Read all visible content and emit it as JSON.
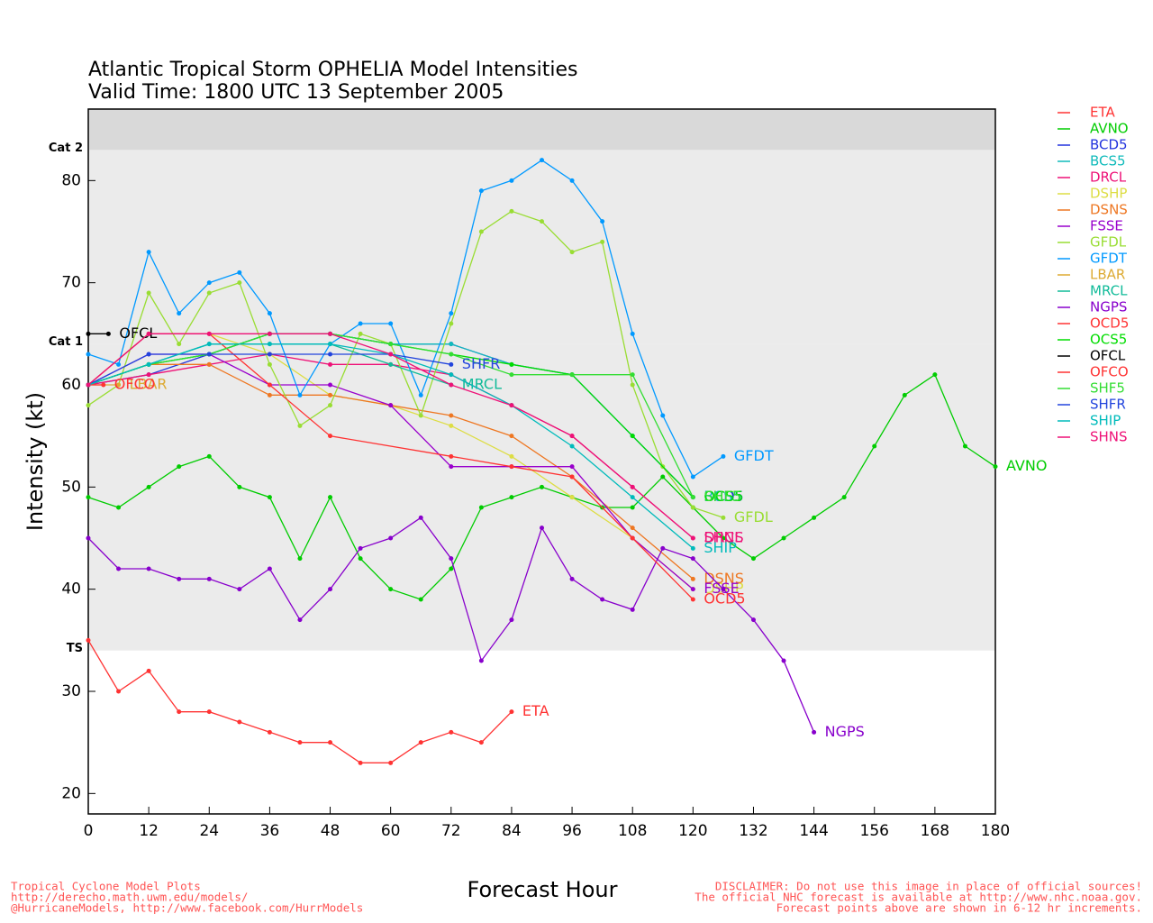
{
  "chart_data": {
    "type": "line",
    "title": "Atlantic Tropical Storm OPHELIA Model Intensities",
    "subtitle": "Valid Time: 1800 UTC 13 September 2005",
    "x_label": "Forecast Hour",
    "y_label": "Intensity (kt)",
    "xlim": [
      0,
      180
    ],
    "ylim": [
      18,
      87
    ],
    "xticks": [
      0,
      12,
      24,
      36,
      48,
      60,
      72,
      84,
      96,
      108,
      120,
      132,
      144,
      156,
      168,
      180
    ],
    "yticks": [
      20,
      30,
      40,
      50,
      60,
      70,
      80
    ],
    "bands": [
      {
        "label": "Cat 2",
        "value": 83,
        "color": "#d9d9d9"
      },
      {
        "label": "Cat 1",
        "value": 64,
        "color": "#ebebeb"
      },
      {
        "label": "TS",
        "value": 34,
        "color": "#ebebeb"
      }
    ],
    "series": [
      {
        "name": "ETA",
        "color": "#ff3333",
        "x": [
          0,
          6,
          12,
          18,
          24,
          30,
          36,
          42,
          48,
          54,
          60,
          66,
          72,
          78,
          84
        ],
        "values": [
          35,
          30,
          32,
          28,
          28,
          27,
          26,
          25,
          25,
          23,
          23,
          25,
          26,
          25,
          28
        ]
      },
      {
        "name": "AVNO",
        "color": "#00cc00",
        "x": [
          0,
          6,
          12,
          18,
          24,
          30,
          36,
          42,
          48,
          54,
          60,
          66,
          72,
          78,
          84,
          90,
          96,
          102,
          108,
          114,
          120,
          126,
          132,
          138,
          144,
          150,
          156,
          162,
          168,
          174,
          180
        ],
        "values": [
          49,
          48,
          50,
          52,
          53,
          50,
          49,
          43,
          49,
          43,
          40,
          39,
          42,
          48,
          49,
          50,
          49,
          48,
          48,
          51,
          48,
          45,
          43,
          45,
          47,
          49,
          54,
          59,
          61,
          54,
          52
        ]
      },
      {
        "name": "BCD5",
        "color": "#2233dd",
        "x": [
          0,
          12,
          24,
          36,
          48,
          60,
          72,
          84,
          96,
          108,
          120
        ],
        "values": [
          60,
          61,
          63,
          65,
          65,
          64,
          64,
          62,
          61,
          55,
          49
        ]
      },
      {
        "name": "BCS5",
        "color": "#11bbbb",
        "x": [
          0,
          12,
          24,
          36,
          48,
          60,
          72,
          84,
          96,
          108,
          120
        ],
        "values": [
          60,
          62,
          63,
          65,
          65,
          64,
          64,
          62,
          61,
          55,
          49
        ]
      },
      {
        "name": "DRCL",
        "color": "#ee1177",
        "x": [
          0,
          12,
          24,
          36,
          48,
          60,
          72,
          84,
          96,
          108,
          120
        ],
        "values": [
          60,
          61,
          62,
          63,
          62,
          62,
          61,
          58,
          55,
          50,
          45
        ]
      },
      {
        "name": "DSHP",
        "color": "#dddd44",
        "x": [
          0,
          12,
          24,
          36,
          48,
          60,
          72,
          84,
          96,
          108,
          120
        ],
        "values": [
          60,
          65,
          65,
          63,
          59,
          58,
          56,
          53,
          49,
          45,
          40
        ]
      },
      {
        "name": "DSNS",
        "color": "#ee7722",
        "x": [
          0,
          12,
          24,
          36,
          48,
          60,
          72,
          84,
          96,
          108,
          120
        ],
        "values": [
          60,
          62,
          62,
          59,
          59,
          58,
          57,
          55,
          51,
          46,
          41
        ]
      },
      {
        "name": "FSSE",
        "color": "#9900cc",
        "x": [
          0,
          12,
          24,
          36,
          48,
          60,
          72,
          84,
          96,
          108,
          120
        ],
        "values": [
          60,
          63,
          63,
          60,
          60,
          58,
          52,
          52,
          52,
          45,
          40
        ]
      },
      {
        "name": "GFDL",
        "color": "#99dd33",
        "x": [
          0,
          6,
          12,
          18,
          24,
          30,
          36,
          42,
          48,
          54,
          60,
          66,
          72,
          78,
          84,
          90,
          96,
          102,
          108,
          114,
          120,
          126
        ],
        "values": [
          58,
          60,
          69,
          64,
          69,
          70,
          62,
          56,
          58,
          65,
          64,
          57,
          66,
          75,
          77,
          76,
          73,
          74,
          60,
          52,
          48,
          47
        ]
      },
      {
        "name": "GFDT",
        "color": "#0099ff",
        "x": [
          0,
          6,
          12,
          18,
          24,
          30,
          36,
          42,
          48,
          54,
          60,
          66,
          72,
          78,
          84,
          90,
          96,
          102,
          108,
          114,
          120,
          126
        ],
        "values": [
          63,
          62,
          73,
          67,
          70,
          71,
          67,
          59,
          64,
          66,
          66,
          59,
          67,
          79,
          80,
          82,
          80,
          76,
          65,
          57,
          51,
          53
        ]
      },
      {
        "name": "LBAR",
        "color": "#ddaa33",
        "x": [
          0,
          6
        ],
        "values": [
          60,
          60
        ]
      },
      {
        "name": "MRCL",
        "color": "#11bb99",
        "x": [
          0,
          12,
          24,
          36,
          48,
          60,
          72
        ],
        "values": [
          60,
          62,
          64,
          64,
          64,
          62,
          60
        ]
      },
      {
        "name": "NGPS",
        "color": "#8800cc",
        "x": [
          0,
          6,
          12,
          18,
          24,
          30,
          36,
          42,
          48,
          54,
          60,
          66,
          72,
          78,
          84,
          90,
          96,
          102,
          108,
          114,
          120,
          126,
          132,
          138,
          144
        ],
        "values": [
          45,
          42,
          42,
          41,
          41,
          40,
          42,
          37,
          40,
          44,
          45,
          47,
          43,
          33,
          37,
          46,
          41,
          39,
          38,
          44,
          43,
          40,
          37,
          33,
          26
        ]
      },
      {
        "name": "OCD5",
        "color": "#ff3333",
        "x": [
          0,
          12,
          24,
          36,
          48,
          72,
          84,
          96,
          108,
          120
        ],
        "values": [
          60,
          65,
          65,
          60,
          55,
          53,
          52,
          51,
          45,
          39
        ]
      },
      {
        "name": "OCS5",
        "color": "#00dd00",
        "x": [
          0,
          12,
          24,
          36,
          48,
          60,
          72,
          84,
          96,
          108,
          120
        ],
        "values": [
          60,
          62,
          63,
          65,
          65,
          64,
          63,
          62,
          61,
          55,
          49
        ]
      },
      {
        "name": "OFCL",
        "color": "#000000",
        "x": [
          0,
          4
        ],
        "values": [
          65,
          65
        ]
      },
      {
        "name": "OFCO",
        "color": "#ff3333",
        "x": [
          0,
          3
        ],
        "values": [
          60,
          60
        ]
      },
      {
        "name": "SHF5",
        "color": "#33dd33",
        "x": [
          0,
          12,
          24,
          36,
          48,
          60,
          72,
          84,
          96,
          108,
          120
        ],
        "values": [
          60,
          62,
          63,
          65,
          65,
          64,
          63,
          61,
          61,
          61,
          49
        ]
      },
      {
        "name": "SHFR",
        "color": "#2244dd",
        "x": [
          0,
          12,
          24,
          36,
          48,
          60,
          72
        ],
        "values": [
          60,
          63,
          63,
          63,
          63,
          63,
          62
        ]
      },
      {
        "name": "SHIP",
        "color": "#00bbbb",
        "x": [
          0,
          12,
          24,
          36,
          48,
          60,
          72,
          84,
          96,
          108,
          120
        ],
        "values": [
          60,
          62,
          64,
          64,
          64,
          63,
          61,
          58,
          54,
          49,
          44
        ]
      },
      {
        "name": "SHNS",
        "color": "#ee1177",
        "x": [
          0,
          12,
          24,
          36,
          48,
          60,
          72,
          84,
          96,
          108,
          120
        ],
        "values": [
          60,
          65,
          65,
          65,
          65,
          63,
          60,
          58,
          55,
          50,
          45
        ]
      }
    ],
    "footer_left": [
      "Tropical Cyclone Model Plots",
      "http://derecho.math.uwm.edu/models/",
      "@HurricaneModels, http://www.facebook.com/HurrModels"
    ],
    "footer_right": [
      "DISCLAIMER: Do not use this image in place of official sources!",
      "The official NHC forecast is available at http://www.nhc.noaa.gov.",
      "Forecast points above are shown in 6-12 hr increments."
    ]
  }
}
